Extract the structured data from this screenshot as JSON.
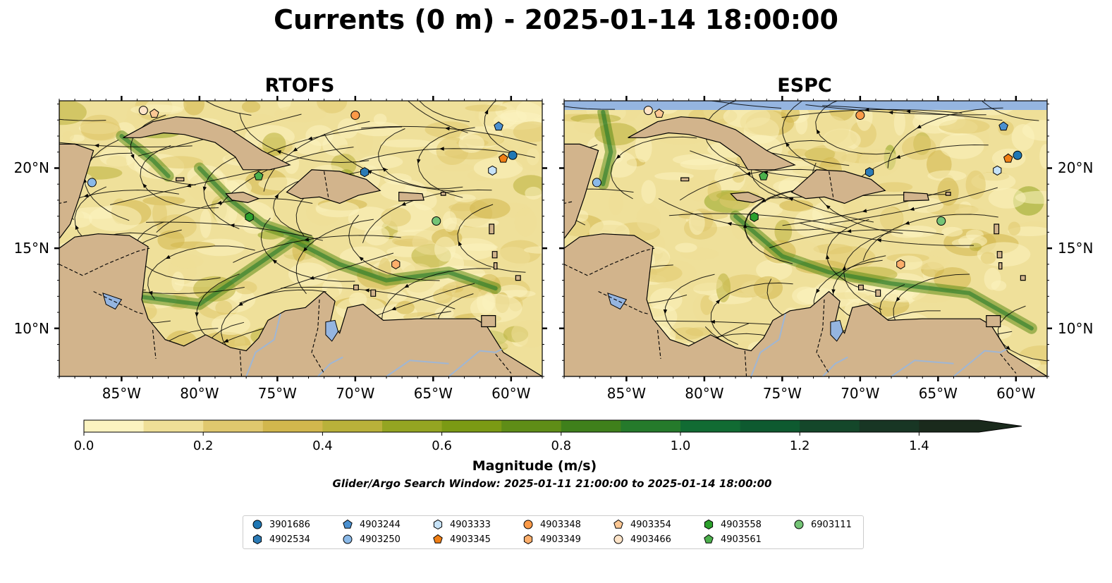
{
  "title": "Currents (0 m) - 2025-01-14 18:00:00",
  "panels": [
    {
      "id": "rtofs",
      "title": "RTOFS"
    },
    {
      "id": "espc",
      "title": "ESPC"
    }
  ],
  "map_extent": {
    "lon": [
      -89,
      -58
    ],
    "lat": [
      7,
      24.2
    ]
  },
  "lon_ticks": [
    "85°W",
    "80°W",
    "75°W",
    "70°W",
    "65°W",
    "60°W"
  ],
  "lon_tick_values": [
    -85,
    -80,
    -75,
    -70,
    -65,
    -60
  ],
  "lat_ticks": [
    "20°N",
    "15°N",
    "10°N"
  ],
  "lat_tick_values": [
    20,
    15,
    10
  ],
  "colorbar": {
    "title": "Magnitude (m/s)",
    "tick_labels": [
      "0.0",
      "0.2",
      "0.4",
      "0.6",
      "0.8",
      "1.0",
      "1.2",
      "1.4"
    ],
    "tick_values": [
      0,
      0.2,
      0.4,
      0.6,
      0.8,
      1.0,
      1.2,
      1.4
    ],
    "range": [
      0,
      1.5
    ],
    "extend": "max",
    "colors": [
      "#fbf3c0",
      "#efdf97",
      "#e0c86e",
      "#d2b74d",
      "#b9b13a",
      "#94a522",
      "#7b9a14",
      "#5f8d17",
      "#3f801b",
      "#257a2b",
      "#116b33",
      "#0e5a30",
      "#14472a",
      "#183624",
      "#1a2a1c"
    ]
  },
  "subtitle": "Glider/Argo Search Window: 2025-01-11 21:00:00 to 2025-01-14 18:00:00",
  "colors": {
    "land": "#d2b48c",
    "lake": "#95b5e0",
    "river": "#9fb6d4",
    "ocean_low": "#f3e6a8"
  },
  "floats": [
    {
      "id": "3901686",
      "marker": "circle",
      "color": "#1f77b4",
      "lon": -59.9,
      "lat": 20.8
    },
    {
      "id": "4902534",
      "marker": "hexagon",
      "color": "#2c7bb6",
      "lon": -69.4,
      "lat": 19.75
    },
    {
      "id": "4903244",
      "marker": "pentagon",
      "color": "#4a90d0",
      "lon": -60.8,
      "lat": 22.6
    },
    {
      "id": "4903250",
      "marker": "circle",
      "color": "#8ab9e8",
      "lon": -86.9,
      "lat": 19.1
    },
    {
      "id": "4903333",
      "marker": "hexagon",
      "color": "#c6e2f7",
      "lon": -61.2,
      "lat": 19.85
    },
    {
      "id": "4903345",
      "marker": "pentagon",
      "color": "#f07f15",
      "lon": -60.5,
      "lat": 20.6
    },
    {
      "id": "4903348",
      "marker": "circle",
      "color": "#fb9a48",
      "lon": -70.0,
      "lat": 23.3
    },
    {
      "id": "4903349",
      "marker": "hexagon",
      "color": "#fdae6b",
      "lon": -67.4,
      "lat": 14.0
    },
    {
      "id": "4903354",
      "marker": "pentagon",
      "color": "#fdc894",
      "lon": -82.9,
      "lat": 23.4
    },
    {
      "id": "4903466",
      "marker": "circle",
      "color": "#fee4c8",
      "lon": -83.6,
      "lat": 23.6
    },
    {
      "id": "4903558",
      "marker": "hexagon",
      "color": "#2ca02c",
      "lon": -76.8,
      "lat": 16.95
    },
    {
      "id": "4903561",
      "marker": "pentagon",
      "color": "#4cb04c",
      "lon": -76.2,
      "lat": 19.5
    },
    {
      "id": "6903111",
      "marker": "circle",
      "color": "#74c476",
      "lon": -64.8,
      "lat": 16.7
    }
  ]
}
